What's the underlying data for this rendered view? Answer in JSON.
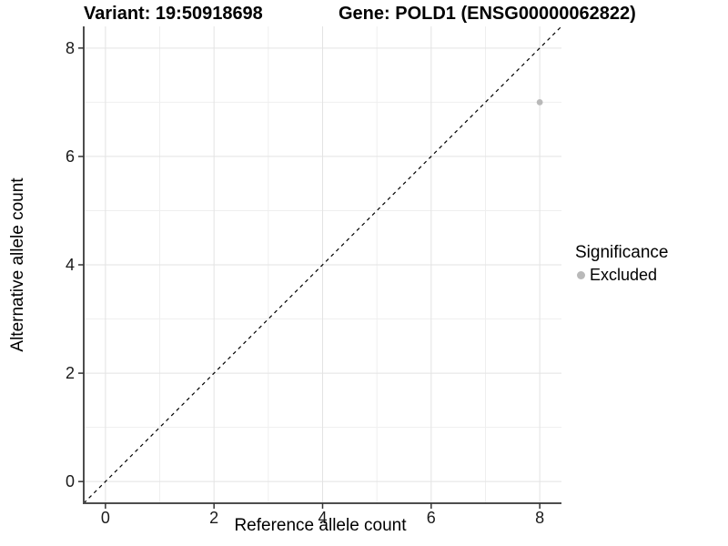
{
  "titles": {
    "variant": "Variant: 19:50918698",
    "gene": "Gene: POLD1 (ENSG00000062822)"
  },
  "axes": {
    "x_label": "Reference allele count",
    "y_label": "Alternative allele count"
  },
  "legend": {
    "title": "Significance",
    "items": [
      {
        "label": "Excluded",
        "color": "#b9b9b9"
      }
    ]
  },
  "colors": {
    "background": "#ffffff",
    "axis_line": "#4d4d4d",
    "tick_mark": "#333333",
    "tick_label": "#1a1a1a",
    "grid_major": "#e3e3e3",
    "grid_minor": "#efefef",
    "identity_line": "#000000",
    "point": "#b9b9b9"
  },
  "chart_data": {
    "type": "scatter",
    "title": "Variant: 19:50918698   /   Gene: POLD1 (ENSG00000062822)",
    "xlabel": "Reference allele count",
    "ylabel": "Alternative allele count",
    "xlim": [
      -0.4,
      8.4
    ],
    "ylim": [
      -0.4,
      8.4
    ],
    "x_ticks": [
      0,
      2,
      4,
      6,
      8
    ],
    "y_ticks": [
      0,
      2,
      4,
      6,
      8
    ],
    "x_minor": [
      1,
      3,
      5,
      7
    ],
    "y_minor": [
      1,
      3,
      5,
      7
    ],
    "grid": true,
    "identity_line": {
      "from": [
        -0.4,
        -0.4
      ],
      "to": [
        8.4,
        8.4
      ],
      "style": "dashed"
    },
    "series": [
      {
        "name": "Excluded",
        "color": "#b9b9b9",
        "points": [
          {
            "x": 8,
            "y": 7
          }
        ]
      }
    ],
    "legend_position": "right",
    "legend_title": "Significance"
  }
}
